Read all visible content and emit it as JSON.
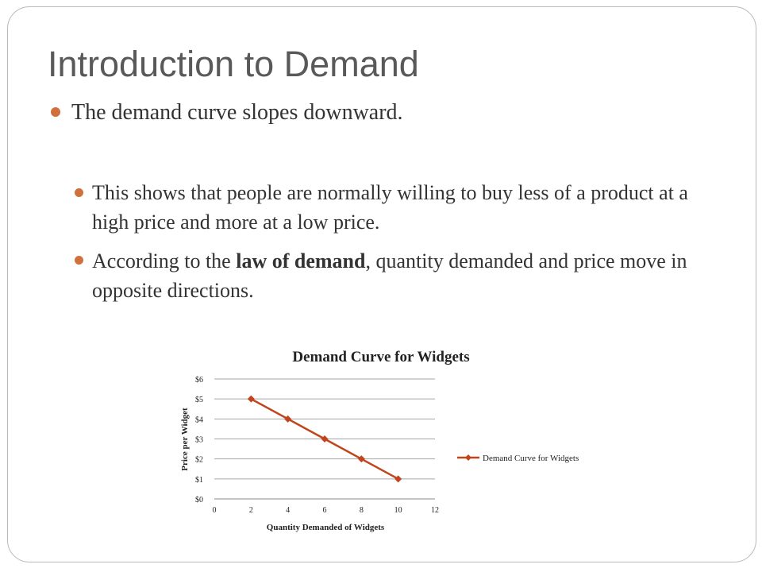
{
  "slide": {
    "title": "Introduction to Demand",
    "bullet_main": "The demand curve slopes downward.",
    "sub_bullet_1": "This shows that people are normally willing to buy less of a product at a high price and more at a low price.",
    "sub_bullet_2_prefix": "According to the ",
    "sub_bullet_2_bold": "law of demand",
    "sub_bullet_2_suffix": ", quantity demanded and price move in opposite directions.",
    "accent_color": "#d0703c"
  },
  "chart_data": {
    "type": "line",
    "title": "Demand Curve for Widgets",
    "xlabel": "Quantity Demanded  of Widgets",
    "ylabel": "Price per Widget",
    "x_ticks": [
      "0",
      "2",
      "4",
      "6",
      "8",
      "10",
      "12"
    ],
    "y_ticks": [
      "$0",
      "$1",
      "$2",
      "$3",
      "$4",
      "$5",
      "$6"
    ],
    "xlim": [
      0,
      12
    ],
    "ylim": [
      0,
      6
    ],
    "grid": "horizontal",
    "legend_position": "right",
    "series": [
      {
        "name": "Demand Curve for Widgets",
        "color": "#c0441c",
        "x": [
          2,
          4,
          6,
          8,
          10
        ],
        "y": [
          5,
          4,
          3,
          2,
          1
        ]
      }
    ]
  }
}
